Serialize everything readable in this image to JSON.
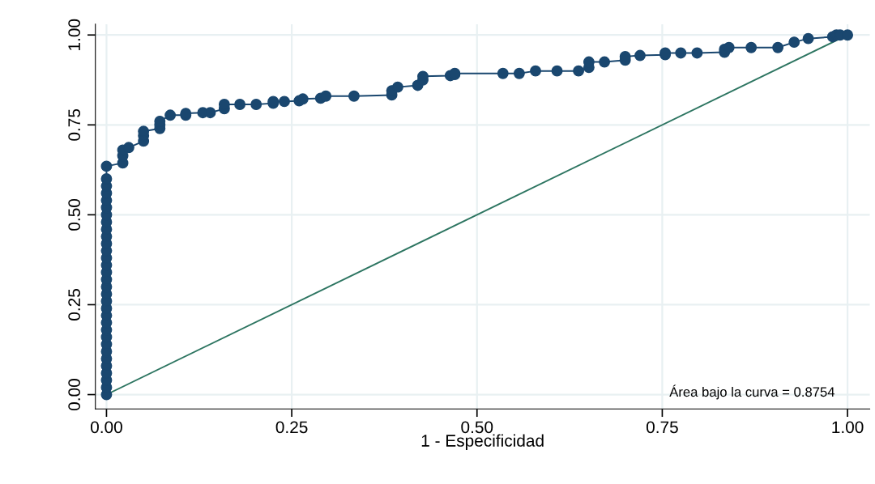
{
  "chart_data": {
    "type": "line",
    "xlabel": "1 - Especificidad",
    "series": [
      {
        "color": "#1a476f",
        "marker": "circle",
        "line_style": "solid",
        "x": [
          0,
          0,
          0,
          0,
          0,
          0,
          0,
          0,
          0,
          0,
          0,
          0,
          0,
          0,
          0,
          0,
          0,
          0,
          0,
          0,
          0,
          0,
          0,
          0,
          0,
          0,
          0,
          0,
          0,
          0,
          0,
          0,
          0.022,
          0.022,
          0.022,
          0.03,
          0.05,
          0.05,
          0.05,
          0.072,
          0.072,
          0.072,
          0.086,
          0.107,
          0.107,
          0.13,
          0.14,
          0.159,
          0.159,
          0.18,
          0.202,
          0.225,
          0.225,
          0.24,
          0.26,
          0.265,
          0.289,
          0.296,
          0.334,
          0.385,
          0.385,
          0.393,
          0.42,
          0.427,
          0.427,
          0.464,
          0.47,
          0.47,
          0.535,
          0.557,
          0.579,
          0.608,
          0.637,
          0.651,
          0.651,
          0.672,
          0.7,
          0.7,
          0.72,
          0.754,
          0.754,
          0.775,
          0.797,
          0.834,
          0.834,
          0.84,
          0.87,
          0.906,
          0.928,
          0.947,
          0.98,
          0.985,
          0.99,
          1
        ],
        "values": [
          0,
          0.02,
          0.04,
          0.06,
          0.08,
          0.1,
          0.12,
          0.14,
          0.16,
          0.18,
          0.2,
          0.22,
          0.24,
          0.26,
          0.28,
          0.3,
          0.32,
          0.34,
          0.36,
          0.38,
          0.4,
          0.42,
          0.44,
          0.46,
          0.48,
          0.5,
          0.52,
          0.54,
          0.56,
          0.58,
          0.6,
          0.635,
          0.644,
          0.664,
          0.68,
          0.687,
          0.705,
          0.72,
          0.732,
          0.74,
          0.75,
          0.76,
          0.777,
          0.777,
          0.782,
          0.784,
          0.784,
          0.795,
          0.807,
          0.807,
          0.807,
          0.81,
          0.815,
          0.815,
          0.817,
          0.822,
          0.824,
          0.83,
          0.83,
          0.833,
          0.845,
          0.855,
          0.86,
          0.875,
          0.885,
          0.887,
          0.89,
          0.893,
          0.893,
          0.893,
          0.9,
          0.9,
          0.9,
          0.91,
          0.925,
          0.925,
          0.93,
          0.94,
          0.943,
          0.945,
          0.95,
          0.95,
          0.95,
          0.952,
          0.96,
          0.965,
          0.965,
          0.965,
          0.98,
          0.99,
          0.995,
          1,
          1,
          1
        ]
      },
      {
        "color": "#2d7561",
        "marker": "none",
        "line_style": "solid",
        "x": [
          0,
          1
        ],
        "values": [
          0,
          1
        ]
      }
    ],
    "xlim": [
      -0.015,
      1.03
    ],
    "ylim": [
      -0.04,
      1.03
    ],
    "xticks": [
      {
        "value": 0,
        "label": "0.00"
      },
      {
        "value": 0.25,
        "label": "0.25"
      },
      {
        "value": 0.5,
        "label": "0.50"
      },
      {
        "value": 0.75,
        "label": "0.75"
      },
      {
        "value": 1,
        "label": "1.00"
      }
    ],
    "yticks": [
      {
        "value": 0,
        "label": "0.00"
      },
      {
        "value": 0.25,
        "label": "0.25"
      },
      {
        "value": 0.5,
        "label": "0.50"
      },
      {
        "value": 0.75,
        "label": "0.75"
      },
      {
        "value": 1,
        "label": "1.00"
      }
    ],
    "grid": true,
    "annotations": [
      "Área bajo la curva = 0.8754"
    ]
  }
}
